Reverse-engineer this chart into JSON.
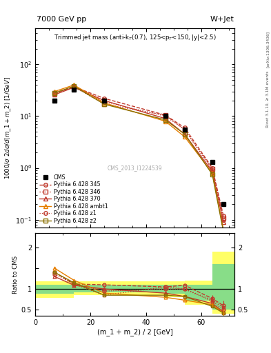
{
  "title_top": "7000 GeV pp",
  "title_right": "W+Jet",
  "ylabel_main": "1000/σ 2dσ/d(m_1 + m_2) [1/GeV]",
  "ylabel_ratio": "Ratio to CMS",
  "xlabel": "(m_1 + m_2) / 2 [GeV]",
  "watermark": "CMS_2013_I1224539",
  "right_label_top": "Rivet 3.1.10, ≥ 3.1M events",
  "right_label_bot": "[arXiv:1306.3436]",
  "x_data": [
    7,
    14,
    25,
    47,
    54,
    64,
    68
  ],
  "cms_y": [
    20,
    33,
    20,
    10,
    5.5,
    1.3,
    0.2
  ],
  "p345_y": [
    28,
    37,
    22,
    10.5,
    6.0,
    1.0,
    0.12
  ],
  "p346_y": [
    28,
    37,
    17,
    10.5,
    5.5,
    0.95,
    0.11
  ],
  "p370_y": [
    26,
    36,
    20,
    9.0,
    4.5,
    0.85,
    0.09
  ],
  "pambt1_y": [
    30,
    40,
    18,
    8.0,
    4.0,
    0.8,
    0.065
  ],
  "pz1_y": [
    27,
    37,
    19,
    10.0,
    5.5,
    0.9,
    0.1
  ],
  "pz2_y": [
    28,
    38,
    17,
    8.5,
    4.5,
    0.75,
    0.06
  ],
  "ratio_x": [
    7,
    14,
    25,
    47,
    54,
    64,
    68
  ],
  "r345_y": [
    1.4,
    1.12,
    1.1,
    1.05,
    1.09,
    0.77,
    0.6
  ],
  "r346_y": [
    1.4,
    1.12,
    0.85,
    1.05,
    1.0,
    0.73,
    0.55
  ],
  "r370_y": [
    1.3,
    1.09,
    1.0,
    0.9,
    0.82,
    0.65,
    0.45
  ],
  "rambt1_y": [
    1.5,
    1.21,
    0.9,
    0.8,
    0.73,
    0.62,
    0.43
  ],
  "rz1_y": [
    1.35,
    1.12,
    0.95,
    1.0,
    1.0,
    0.7,
    0.5
  ],
  "rz2_y": [
    1.4,
    1.15,
    0.85,
    0.85,
    0.82,
    0.58,
    0.42
  ],
  "band_x_edges": [
    0,
    14,
    25,
    47,
    54,
    64,
    72
  ],
  "green_band_low": [
    0.88,
    0.92,
    0.92,
    0.88,
    0.72,
    0.5,
    0.5
  ],
  "green_band_high": [
    1.1,
    1.1,
    1.1,
    1.1,
    1.1,
    1.6,
    2.25
  ],
  "yellow_band_low": [
    0.78,
    0.85,
    0.85,
    0.8,
    0.62,
    0.4,
    0.4
  ],
  "yellow_band_high": [
    1.18,
    1.18,
    1.18,
    1.18,
    1.2,
    1.9,
    2.5
  ],
  "color_345": "#c0392b",
  "color_346": "#c0392b",
  "color_370": "#c0392b",
  "color_ambt1": "#e67e00",
  "color_z1": "#c0392b",
  "color_z2": "#8b7000",
  "xlim": [
    0,
    72
  ],
  "ylim_main": [
    0.07,
    500
  ],
  "ylim_ratio": [
    0.35,
    2.35
  ]
}
